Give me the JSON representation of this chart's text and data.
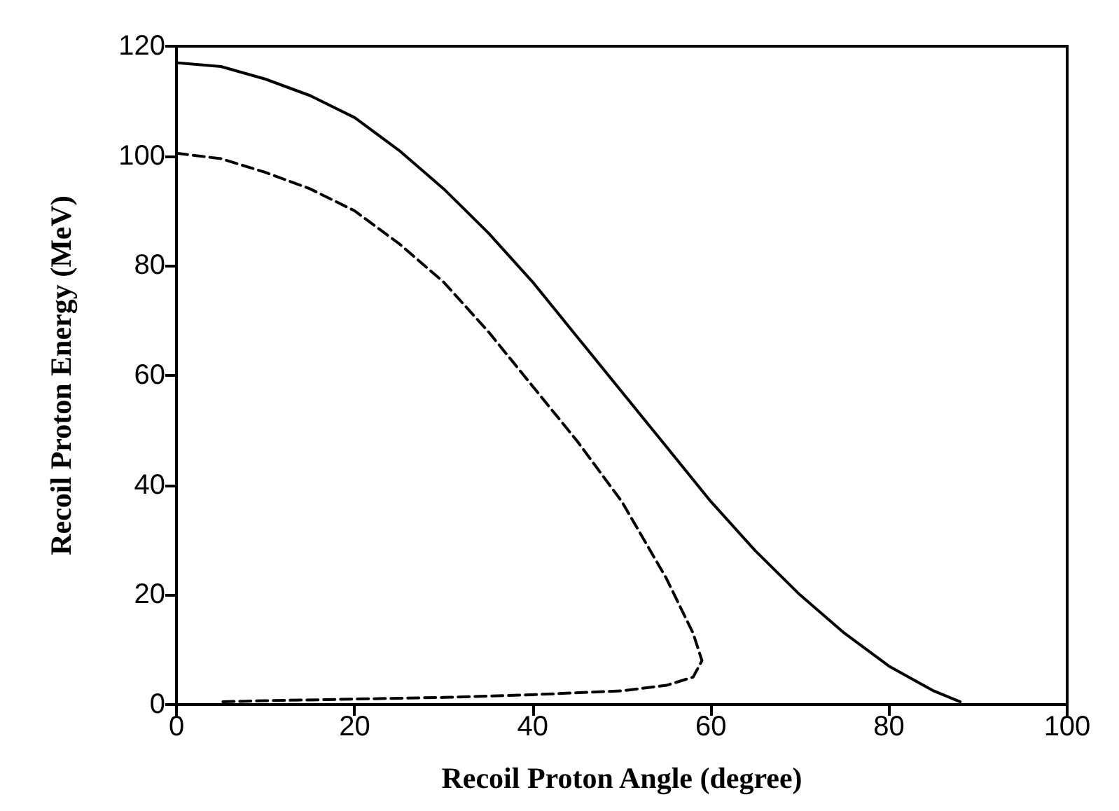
{
  "chart_data": {
    "type": "line",
    "xlabel": "Recoil Proton Angle (degree)",
    "ylabel": "Recoil Proton Energy (MeV)",
    "xlim": [
      0,
      100
    ],
    "xticks": [
      0,
      20,
      40,
      60,
      80,
      100
    ],
    "ylim": [
      0,
      120
    ],
    "yticks": [
      0,
      20,
      40,
      60,
      80,
      100,
      120
    ],
    "grid": false,
    "marker": "none",
    "series": [
      {
        "color": "#000000",
        "line_style": "solid",
        "x": [
          0,
          5,
          10,
          15,
          20,
          25,
          30,
          35,
          40,
          45,
          50,
          55,
          60,
          65,
          70,
          75,
          80,
          85,
          88
        ],
        "values": [
          117,
          116.3,
          114,
          111,
          107,
          101,
          94,
          86,
          77,
          67,
          57,
          47,
          37,
          28,
          20,
          13,
          7,
          2.5,
          0.5
        ]
      },
      {
        "color": "#000000",
        "line_style": "dashed",
        "x": [
          0,
          5,
          10,
          15,
          20,
          25,
          30,
          35,
          40,
          45,
          50,
          55,
          58,
          59,
          58,
          55,
          50,
          40,
          30,
          20,
          10,
          5
        ],
        "values": [
          100.5,
          99.5,
          97,
          94,
          90,
          84,
          77,
          68,
          58,
          48,
          37,
          23,
          13,
          8,
          5,
          3.5,
          2.5,
          1.8,
          1.3,
          1,
          0.7,
          0.5
        ]
      }
    ]
  }
}
